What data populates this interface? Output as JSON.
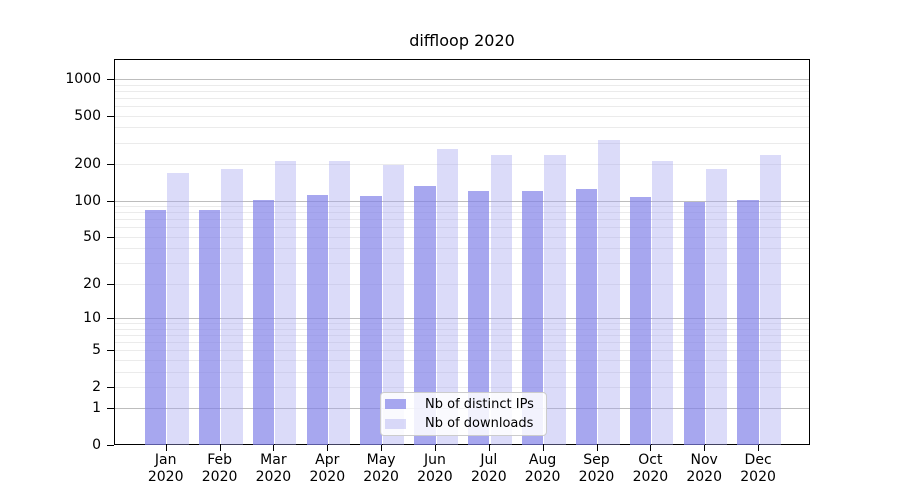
{
  "title": "diffloop 2020",
  "chart_data": {
    "type": "bar",
    "title": "diffloop 2020",
    "categories": [
      "Jan",
      "Feb",
      "Mar",
      "Apr",
      "May",
      "Jun",
      "Jul",
      "Aug",
      "Sep",
      "Oct",
      "Nov",
      "Dec"
    ],
    "x_year_label": "2020",
    "series": [
      {
        "name": "Nb of distinct IPs",
        "color": "rgba(130,130,232,0.7)",
        "values": [
          85,
          85,
          103,
          113,
          111,
          135,
          122,
          122,
          127,
          109,
          100,
          102
        ]
      },
      {
        "name": "Nb of downloads",
        "color": "rgba(165,165,240,0.4)",
        "values": [
          172,
          184,
          214,
          218,
          200,
          270,
          240,
          244,
          320,
          215,
          186,
          242
        ]
      }
    ],
    "y_axis": {
      "scale": "log1p",
      "tick_labels": [
        "1000",
        "500",
        "200",
        "100",
        "50",
        "20",
        "10",
        "5",
        "2",
        "1",
        "0"
      ],
      "tick_values": [
        1000,
        500,
        200,
        100,
        50,
        20,
        10,
        5,
        2,
        1,
        0
      ],
      "major_gridlines": [
        1,
        10,
        100,
        1000
      ],
      "minor_gridlines": [
        2,
        3,
        4,
        5,
        6,
        7,
        8,
        9,
        20,
        30,
        40,
        50,
        60,
        70,
        80,
        90,
        200,
        300,
        400,
        500,
        600,
        700,
        800,
        900
      ],
      "top_value": 1459
    },
    "legend_position": "bottom-center",
    "grid": "on"
  },
  "colors": {
    "bar_distinct_ips": "rgba(130,130,232,0.7)",
    "bar_downloads": "rgba(165,165,240,0.4)",
    "grid_major": "#bdbdbd",
    "grid_minor": "#ebebeb",
    "axis": "#000000",
    "legend_border": "#cccccc"
  }
}
